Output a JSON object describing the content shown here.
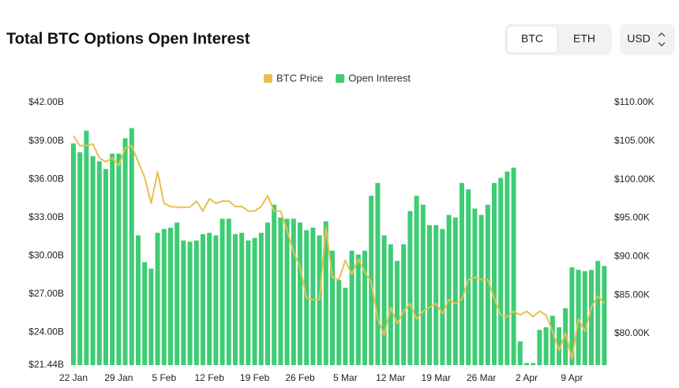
{
  "header": {
    "title": "Total BTC Options Open Interest",
    "toggle": [
      "BTC",
      "ETH"
    ],
    "currency": "USD"
  },
  "chart_data": {
    "type": "bar",
    "grid": false,
    "categories": [
      "22 Jan",
      null,
      null,
      null,
      null,
      null,
      null,
      "29 Jan",
      null,
      null,
      null,
      null,
      null,
      null,
      "5 Feb",
      null,
      null,
      null,
      null,
      null,
      null,
      "12 Feb",
      null,
      null,
      null,
      null,
      null,
      null,
      "19 Feb",
      null,
      null,
      null,
      null,
      null,
      null,
      "26 Feb",
      null,
      null,
      null,
      null,
      null,
      null,
      "5 Mar",
      null,
      null,
      null,
      null,
      null,
      null,
      "12 Mar",
      null,
      null,
      null,
      null,
      null,
      null,
      "19 Mar",
      null,
      null,
      null,
      null,
      null,
      null,
      "26 Mar",
      null,
      null,
      null,
      null,
      null,
      null,
      "2 Apr",
      null,
      null,
      null,
      null,
      null,
      null,
      "9 Apr",
      null,
      null,
      null,
      null,
      null
    ],
    "ylim": [
      21.44,
      42
    ],
    "yticks": [
      {
        "value": 21.44,
        "label": "$21.44B"
      },
      {
        "value": 24,
        "label": "$24.00B"
      },
      {
        "value": 27,
        "label": "$27.00B"
      },
      {
        "value": 30,
        "label": "$30.00B"
      },
      {
        "value": 33,
        "label": "$33.00B"
      },
      {
        "value": 36,
        "label": "$36.00B"
      },
      {
        "value": 39,
        "label": "$39.00B"
      },
      {
        "value": 42,
        "label": "$42.00B"
      }
    ],
    "y2lim": [
      75.9,
      110
    ],
    "y2ticks": [
      {
        "value": 80,
        "label": "$80.00K"
      },
      {
        "value": 85,
        "label": "$85.00K"
      },
      {
        "value": 90,
        "label": "$90.00K"
      },
      {
        "value": 95,
        "label": "$95.00K"
      },
      {
        "value": 100,
        "label": "$100.00K"
      },
      {
        "value": 105,
        "label": "$105.00K"
      },
      {
        "value": 110,
        "label": "$110.00K"
      }
    ],
    "series": [
      {
        "name": "BTC Price",
        "type": "line",
        "axis": "y2",
        "color": "#e8bf50",
        "values": [
          105.7,
          104.4,
          104.4,
          104.6,
          102.8,
          102.3,
          102.8,
          101.8,
          104.1,
          104.4,
          102.3,
          100.3,
          96.9,
          101.0,
          96.9,
          96.5,
          96.4,
          96.4,
          96.4,
          97.2,
          95.9,
          97.5,
          96.9,
          97.2,
          97.2,
          96.5,
          96.5,
          95.9,
          95.9,
          96.5,
          97.9,
          95.9,
          95.9,
          93.4,
          90.6,
          88.7,
          84.6,
          84.4,
          84.4,
          93.8,
          87.3,
          87.0,
          89.5,
          87.7,
          89.7,
          88.0,
          86.7,
          81.9,
          79.8,
          83.4,
          81.3,
          82.9,
          83.9,
          81.9,
          82.9,
          83.4,
          83.9,
          82.6,
          84.4,
          83.9,
          84.4,
          87.0,
          87.3,
          87.0,
          87.0,
          84.6,
          82.4,
          82.2,
          82.9,
          82.4,
          82.9,
          82.2,
          82.9,
          82.4,
          80.3,
          77.8,
          80.1,
          76.7,
          81.9,
          80.3,
          83.4,
          84.9,
          83.9
        ]
      },
      {
        "name": "Open Interest",
        "type": "bar",
        "color": "#3ecc74",
        "values": [
          38.8,
          38.1,
          39.8,
          37.8,
          37.4,
          36.8,
          38.0,
          38.0,
          39.2,
          40.0,
          31.6,
          29.5,
          29.0,
          31.8,
          32.1,
          32.2,
          32.6,
          31.2,
          31.1,
          31.2,
          31.7,
          31.8,
          31.6,
          32.9,
          32.9,
          31.7,
          31.8,
          31.2,
          31.4,
          31.8,
          32.6,
          34.0,
          33.0,
          32.9,
          32.9,
          32.6,
          32.0,
          32.2,
          31.6,
          32.7,
          30.4,
          28.1,
          27.5,
          30.4,
          30.1,
          30.4,
          34.7,
          35.7,
          31.6,
          30.9,
          29.6,
          30.9,
          33.5,
          34.7,
          34.0,
          32.4,
          32.4,
          32.1,
          33.2,
          33.0,
          35.7,
          35.2,
          33.7,
          33.2,
          34.0,
          35.7,
          36.1,
          36.6,
          36.9,
          23.3,
          21.6,
          21.6,
          24.2,
          24.4,
          25.3,
          24.4,
          25.9,
          29.1,
          28.9,
          28.8,
          28.9,
          29.6,
          29.2
        ]
      }
    ]
  }
}
